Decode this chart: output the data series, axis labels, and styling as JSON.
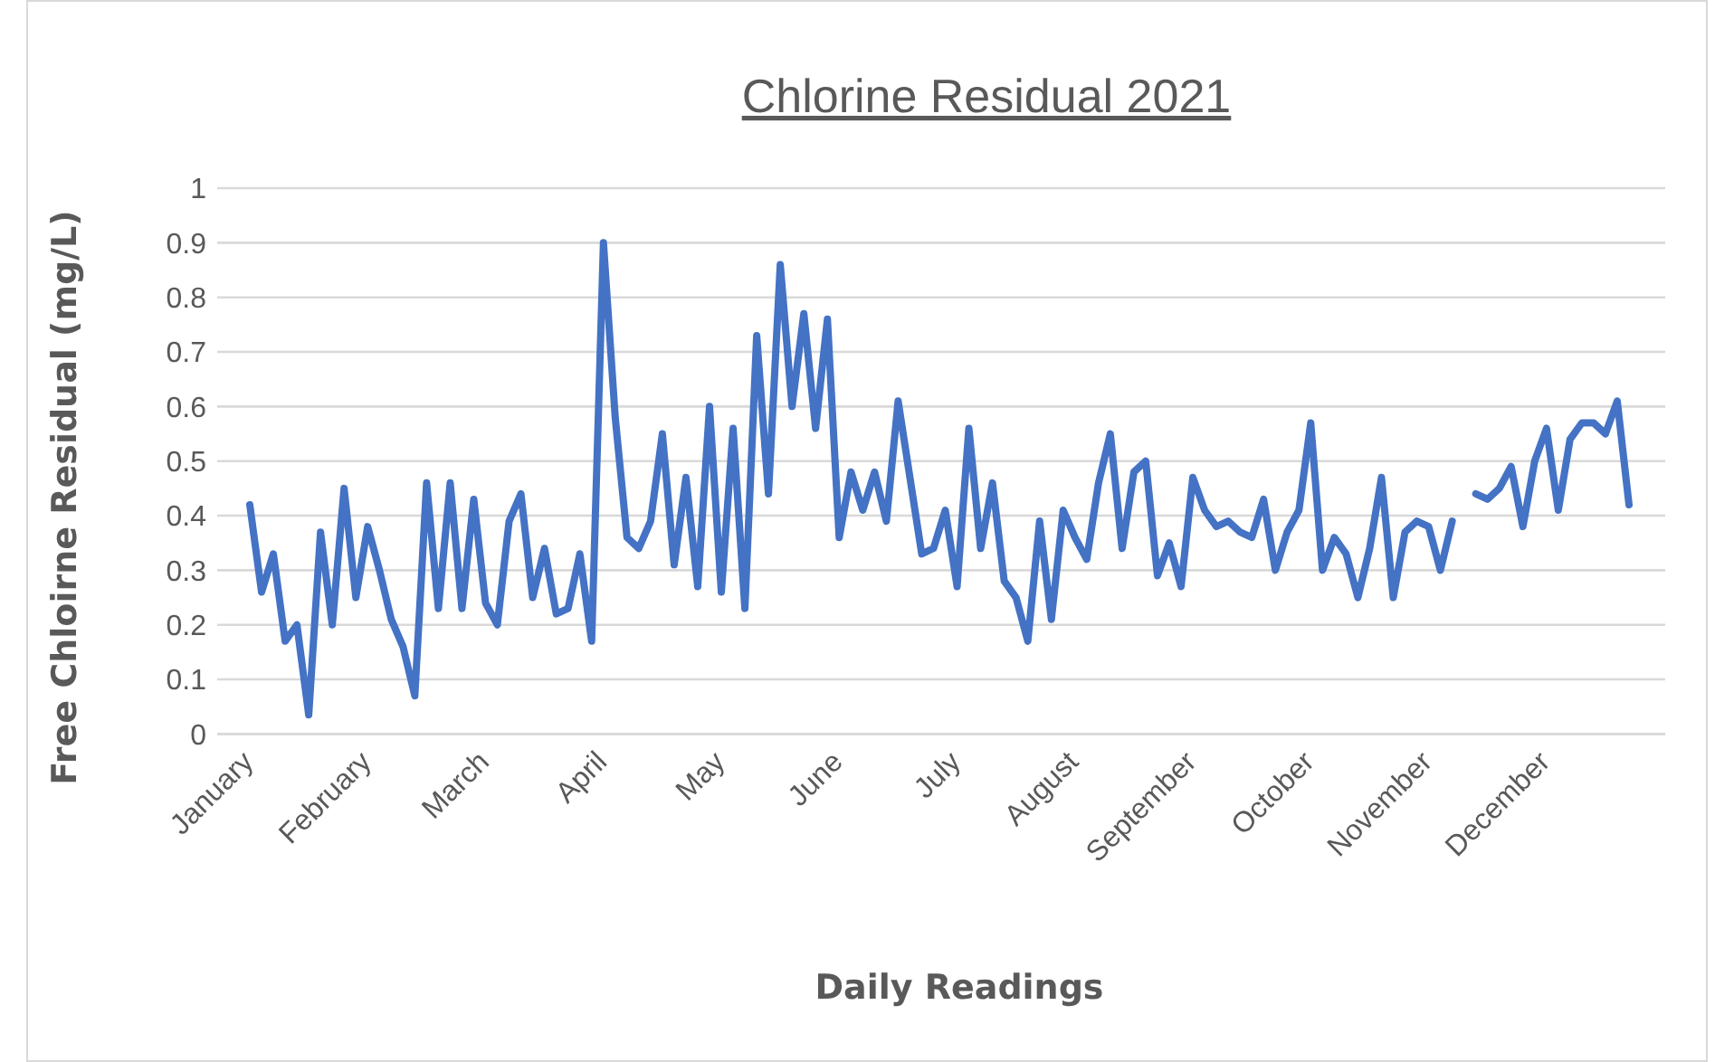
{
  "chart_data": {
    "type": "line",
    "title": "Chlorine Residual 2021",
    "xlabel": "Daily Readings",
    "ylabel": "Free Chloirne Residual (mg/L)",
    "categories": [
      "January",
      null,
      null,
      null,
      null,
      null,
      null,
      null,
      null,
      null,
      "February",
      null,
      null,
      null,
      null,
      null,
      null,
      null,
      null,
      null,
      "March",
      null,
      null,
      null,
      null,
      null,
      null,
      null,
      null,
      null,
      "April",
      null,
      null,
      null,
      null,
      null,
      null,
      null,
      null,
      null,
      "May",
      null,
      null,
      null,
      null,
      null,
      null,
      null,
      null,
      null,
      "June",
      null,
      null,
      null,
      null,
      null,
      null,
      null,
      null,
      null,
      "July",
      null,
      null,
      null,
      null,
      null,
      null,
      null,
      null,
      null,
      "August",
      null,
      null,
      null,
      null,
      null,
      null,
      null,
      null,
      null,
      "September",
      null,
      null,
      null,
      null,
      null,
      null,
      null,
      null,
      null,
      "October",
      null,
      null,
      null,
      null,
      null,
      null,
      null,
      null,
      null,
      "November",
      null,
      null,
      null,
      null,
      null,
      null,
      null,
      null,
      null,
      "December",
      null,
      null,
      null,
      null,
      null,
      null,
      null
    ],
    "series": [
      {
        "color": "#4472c4",
        "values": [
          0.42,
          0.26,
          0.33,
          0.17,
          0.2,
          0.035,
          0.37,
          0.2,
          0.45,
          0.25,
          0.38,
          0.3,
          0.21,
          0.16,
          0.07,
          0.46,
          0.23,
          0.46,
          0.23,
          0.43,
          0.24,
          0.2,
          0.39,
          0.44,
          0.25,
          0.34,
          0.22,
          0.23,
          0.33,
          0.17,
          0.9,
          0.58,
          0.36,
          0.34,
          0.39,
          0.55,
          0.31,
          0.47,
          0.27,
          0.6,
          0.26,
          0.56,
          0.23,
          0.73,
          0.44,
          0.86,
          0.6,
          0.77,
          0.56,
          0.76,
          0.36,
          0.48,
          0.41,
          0.48,
          0.39,
          0.61,
          0.47,
          0.33,
          0.34,
          0.41,
          0.27,
          0.56,
          0.34,
          0.46,
          0.28,
          0.25,
          0.17,
          0.39,
          0.21,
          0.41,
          0.36,
          0.32,
          0.46,
          0.55,
          0.34,
          0.48,
          0.5,
          0.29,
          0.35,
          0.27,
          0.47,
          0.41,
          0.38,
          0.39,
          0.37,
          0.36,
          0.43,
          0.3,
          0.37,
          0.41,
          0.57,
          0.3,
          0.36,
          0.33,
          0.25,
          0.34,
          0.47,
          0.25,
          0.37,
          0.39,
          0.38,
          0.3,
          0.39,
          null,
          0.44,
          0.43,
          0.45,
          0.49,
          0.38,
          0.5,
          0.56,
          0.41,
          0.54,
          0.57,
          0.57,
          0.55,
          0.61,
          0.42
        ]
      }
    ],
    "ylim": [
      0,
      1
    ],
    "yticks": [
      0,
      0.1,
      0.2,
      0.3,
      0.4,
      0.5,
      0.6,
      0.7,
      0.8,
      0.9,
      1
    ],
    "grid": "y",
    "marker": "none",
    "line_style": "solid"
  }
}
